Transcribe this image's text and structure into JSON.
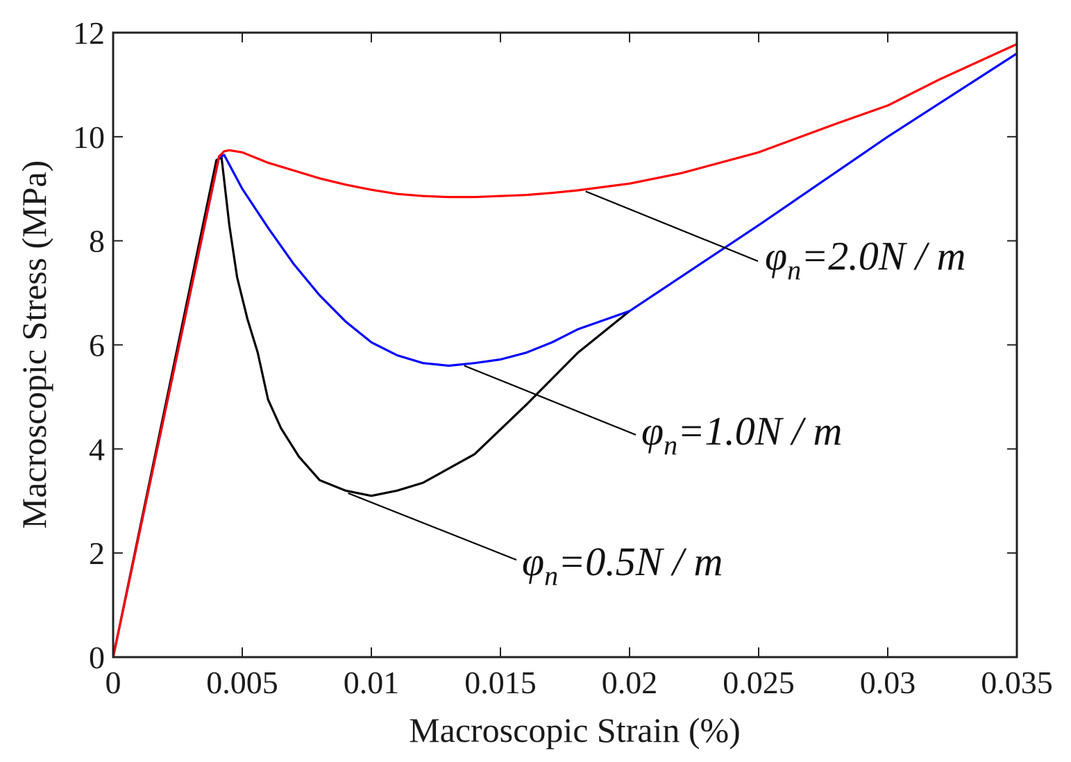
{
  "chart_data": {
    "type": "line",
    "xlabel": "Macroscopic Strain (%)",
    "ylabel": "Macroscopic Stress (MPa)",
    "xlim": [
      0,
      0.035
    ],
    "ylim": [
      0,
      12
    ],
    "xticks": [
      0,
      0.005,
      0.01,
      0.015,
      0.02,
      0.025,
      0.03,
      0.035
    ],
    "xtick_labels": [
      "0",
      "0.005",
      "0.01",
      "0.015",
      "0.02",
      "0.025",
      "0.03",
      "0.035"
    ],
    "yticks": [
      0,
      2,
      4,
      6,
      8,
      10,
      12
    ],
    "ytick_labels": [
      "0",
      "2",
      "4",
      "6",
      "8",
      "10",
      "12"
    ],
    "grid": false,
    "legend": "none",
    "series": [
      {
        "name": "φn = 0.5 N/m",
        "color": "#000000",
        "points": [
          [
            0,
            0
          ],
          [
            0.004,
            9.55
          ],
          [
            0.0042,
            9.6
          ],
          [
            0.0045,
            8.3
          ],
          [
            0.0048,
            7.3
          ],
          [
            0.0052,
            6.5
          ],
          [
            0.0056,
            5.85
          ],
          [
            0.006,
            4.95
          ],
          [
            0.0065,
            4.4
          ],
          [
            0.0072,
            3.85
          ],
          [
            0.008,
            3.4
          ],
          [
            0.009,
            3.2
          ],
          [
            0.01,
            3.1
          ],
          [
            0.011,
            3.2
          ],
          [
            0.012,
            3.35
          ],
          [
            0.014,
            3.9
          ],
          [
            0.016,
            4.85
          ],
          [
            0.018,
            5.85
          ],
          [
            0.02,
            6.65
          ]
        ]
      },
      {
        "name": "φn = 1.0 N/m",
        "color": "#0000ff",
        "points": [
          [
            0,
            0
          ],
          [
            0.0041,
            9.6
          ],
          [
            0.0043,
            9.65
          ],
          [
            0.005,
            9.0
          ],
          [
            0.006,
            8.25
          ],
          [
            0.007,
            7.55
          ],
          [
            0.008,
            6.95
          ],
          [
            0.009,
            6.45
          ],
          [
            0.01,
            6.05
          ],
          [
            0.011,
            5.8
          ],
          [
            0.012,
            5.65
          ],
          [
            0.013,
            5.6
          ],
          [
            0.014,
            5.65
          ],
          [
            0.015,
            5.72
          ],
          [
            0.016,
            5.85
          ],
          [
            0.017,
            6.05
          ],
          [
            0.018,
            6.3
          ],
          [
            0.02,
            6.65
          ],
          [
            0.025,
            8.3
          ],
          [
            0.03,
            10.0
          ],
          [
            0.035,
            11.6
          ]
        ]
      },
      {
        "name": "φn = 2.0 N/m",
        "color": "#ff0000",
        "points": [
          [
            0,
            0
          ],
          [
            0.0041,
            9.62
          ],
          [
            0.0043,
            9.72
          ],
          [
            0.0045,
            9.74
          ],
          [
            0.005,
            9.7
          ],
          [
            0.006,
            9.5
          ],
          [
            0.007,
            9.35
          ],
          [
            0.008,
            9.2
          ],
          [
            0.009,
            9.08
          ],
          [
            0.01,
            8.98
          ],
          [
            0.011,
            8.9
          ],
          [
            0.012,
            8.86
          ],
          [
            0.013,
            8.84
          ],
          [
            0.014,
            8.84
          ],
          [
            0.015,
            8.86
          ],
          [
            0.016,
            8.88
          ],
          [
            0.017,
            8.92
          ],
          [
            0.018,
            8.97
          ],
          [
            0.02,
            9.1
          ],
          [
            0.022,
            9.3
          ],
          [
            0.025,
            9.7
          ],
          [
            0.028,
            10.25
          ],
          [
            0.03,
            10.6
          ],
          [
            0.032,
            11.1
          ],
          [
            0.035,
            11.78
          ]
        ]
      }
    ],
    "annotations": [
      {
        "name": "phi-2-0",
        "sym": "φ",
        "sub": "n",
        "text": "=2.0N / m",
        "anchor": [
          0.0183,
          8.95
        ]
      },
      {
        "name": "phi-1-0",
        "sym": "φ",
        "sub": "n",
        "text": "=1.0N / m",
        "anchor": [
          0.0136,
          5.6
        ]
      },
      {
        "name": "phi-0-5",
        "sym": "φ",
        "sub": "n",
        "text": "=0.5N / m",
        "anchor": [
          0.0091,
          3.15
        ]
      }
    ]
  }
}
